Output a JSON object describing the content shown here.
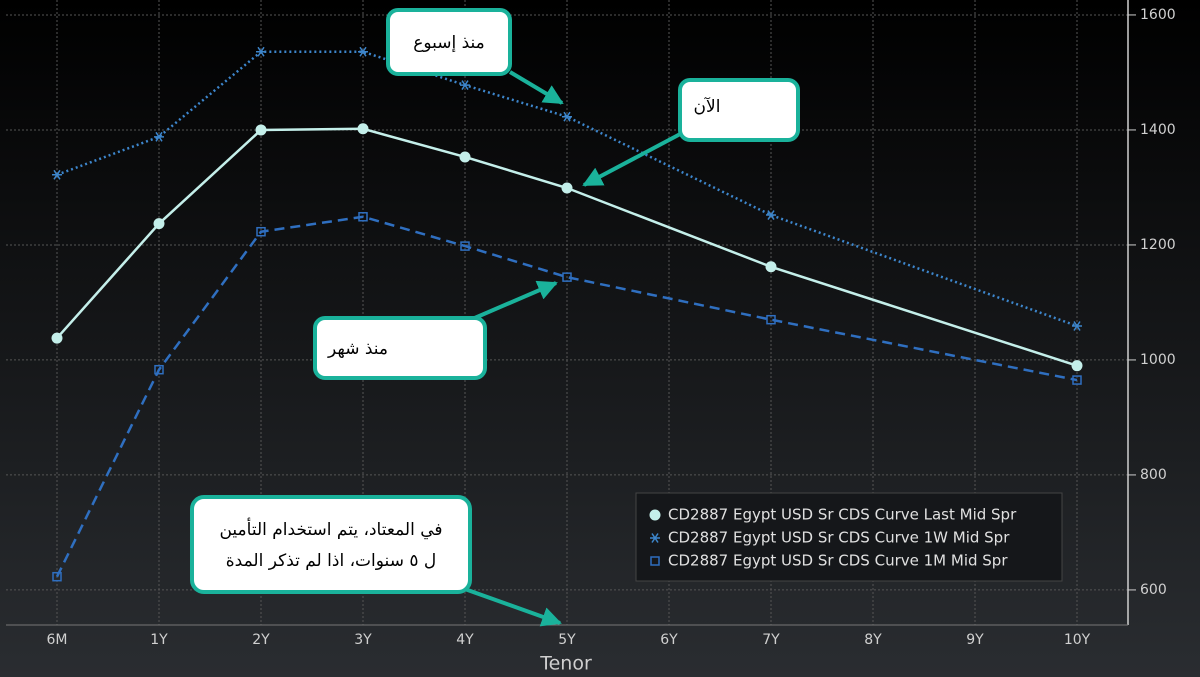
{
  "chart_data": {
    "type": "line",
    "categories": [
      "6M",
      "1Y",
      "2Y",
      "3Y",
      "4Y",
      "5Y",
      "6Y",
      "7Y",
      "8Y",
      "9Y",
      "10Y"
    ],
    "x": [
      "6M",
      "1Y",
      "2Y",
      "3Y",
      "4Y",
      "5Y",
      "7Y",
      "10Y"
    ],
    "xlabel": "Tenor",
    "series": [
      {
        "name": "CD2887 Egypt USD Sr CDS Curve Last Mid Spr",
        "color": "#c4efea",
        "marker": "circle",
        "dash": "solid",
        "values": [
          1038,
          1237,
          1400,
          1402,
          1353,
          1299,
          1162,
          990
        ]
      },
      {
        "name": "CD2887 Egypt USD Sr CDS Curve 1W Mid Spr",
        "color": "#3d86cc",
        "marker": "asterisk",
        "dash": "dotted",
        "values": [
          1322,
          1388,
          1536,
          1536,
          1478,
          1423,
          1252,
          1059
        ]
      },
      {
        "name": "CD2887 Egypt USD Sr CDS Curve 1M Mid Spr",
        "color": "#2f6fc0",
        "marker": "square",
        "dash": "dashed",
        "values": [
          623,
          983,
          1223,
          1249,
          1198,
          1144,
          1070,
          965
        ]
      }
    ],
    "ylim": [
      539,
      1626
    ],
    "yticks": [
      600,
      800,
      1000,
      1200,
      1400,
      1600
    ],
    "grid": true,
    "legend": "lower right",
    "annotations": [
      {
        "lines": [
          "منذ إسبوع"
        ]
      },
      {
        "lines": [
          "الآن"
        ]
      },
      {
        "lines": [
          "منذ شهر"
        ]
      },
      {
        "lines": [
          "في المعتاد، يتم استخدام التأمين",
          "ل ٥ سنوات، اذا لم تذكر المدة"
        ]
      }
    ]
  }
}
